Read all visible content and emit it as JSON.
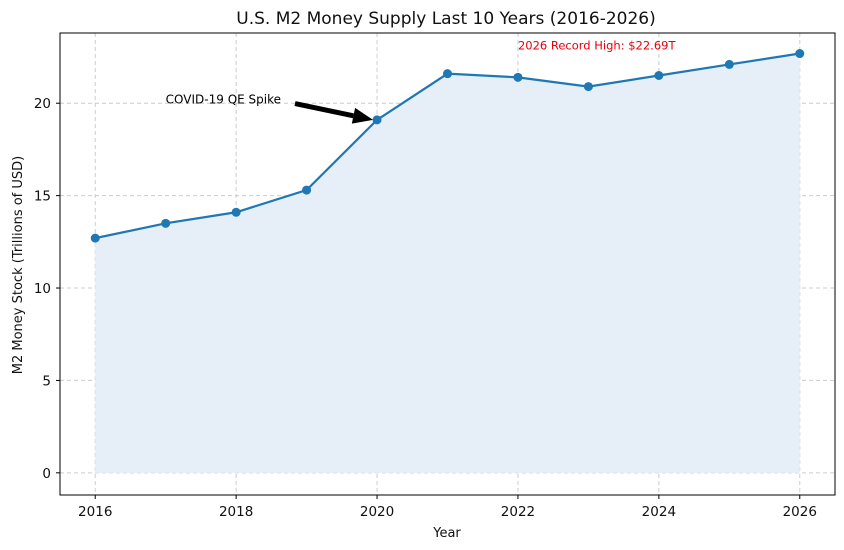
{
  "chart_data": {
    "type": "area",
    "title": "U.S. M2 Money Supply Last 10 Years (2016-2026)",
    "xlabel": "Year",
    "ylabel": "M2 Money Stock (Trillions of USD)",
    "x": [
      2016,
      2017,
      2018,
      2019,
      2020,
      2021,
      2022,
      2023,
      2024,
      2025,
      2026
    ],
    "values": [
      12.7,
      13.5,
      14.1,
      15.3,
      19.1,
      21.6,
      21.4,
      20.9,
      21.5,
      22.1,
      22.69
    ],
    "xlim": [
      2015.5,
      2026.5
    ],
    "ylim": [
      -1.2,
      23.8
    ],
    "xticks": [
      "2016",
      "2018",
      "2020",
      "2022",
      "2024",
      "2026"
    ],
    "yticks": [
      "0",
      "5",
      "10",
      "15",
      "20"
    ],
    "grid": true,
    "line_color": "#1f77b4",
    "fill_color": "#e6eff8",
    "annotations": [
      {
        "text": "COVID-19 QE Spike",
        "x": 2017,
        "y": 20.2,
        "target_x": 2020,
        "target_y": 19.1,
        "color": "#000000"
      },
      {
        "text": "2026 Record High: $22.69T",
        "x": 2022,
        "y": 22.9,
        "color": "#e8000b"
      }
    ]
  }
}
